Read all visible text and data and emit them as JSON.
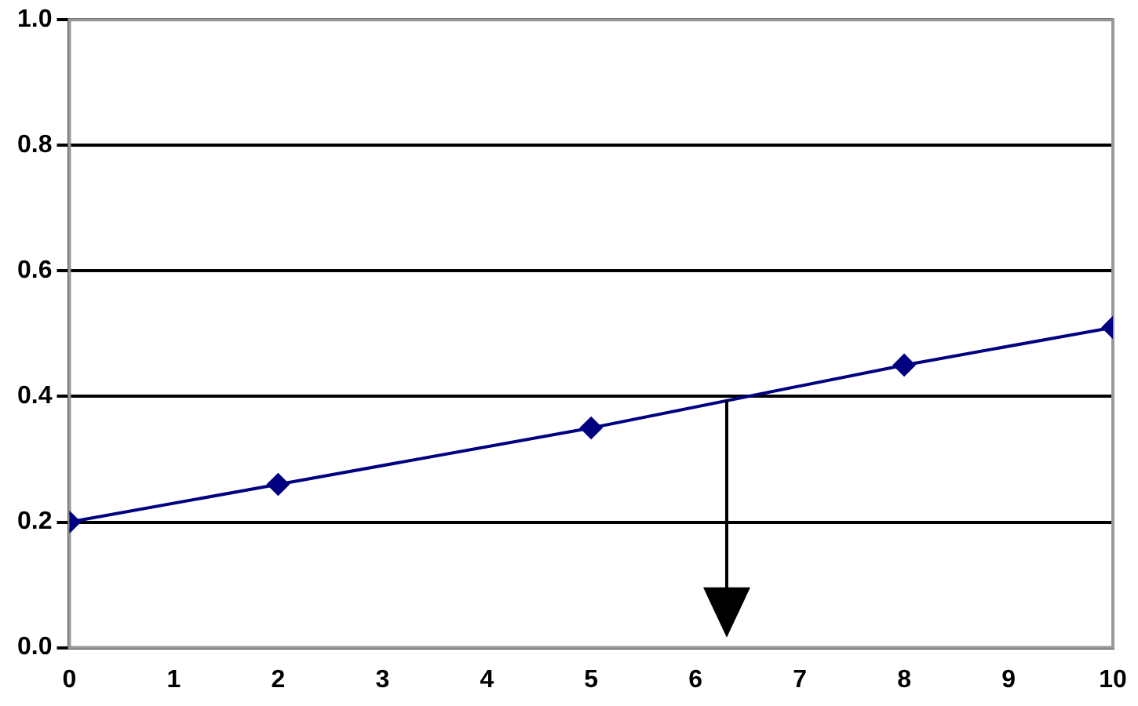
{
  "chart_data": {
    "type": "line",
    "x": [
      0,
      2,
      5,
      8,
      10
    ],
    "series": [
      {
        "color": "#000080",
        "values": [
          0.2,
          0.26,
          0.35,
          0.45,
          0.51
        ]
      }
    ],
    "xlim": [
      0,
      10
    ],
    "xticks": [
      0,
      1,
      2,
      3,
      4,
      5,
      6,
      7,
      8,
      9,
      10
    ],
    "ylim": [
      0,
      1
    ],
    "yticks": [
      {
        "value": 0,
        "label": "0.0"
      },
      {
        "value": 0.2,
        "label": "0.2"
      },
      {
        "value": 0.4,
        "label": "0.4"
      },
      {
        "value": 0.6,
        "label": "0.6"
      },
      {
        "value": 0.8,
        "label": "0.8"
      },
      {
        "value": 1,
        "label": "1.0"
      }
    ],
    "grid": "y",
    "legend": false,
    "marker": "diamond",
    "line_style": "solid",
    "ref_lines": [
      {
        "axis": "x",
        "value": 6.3,
        "color": "#000000"
      }
    ]
  }
}
